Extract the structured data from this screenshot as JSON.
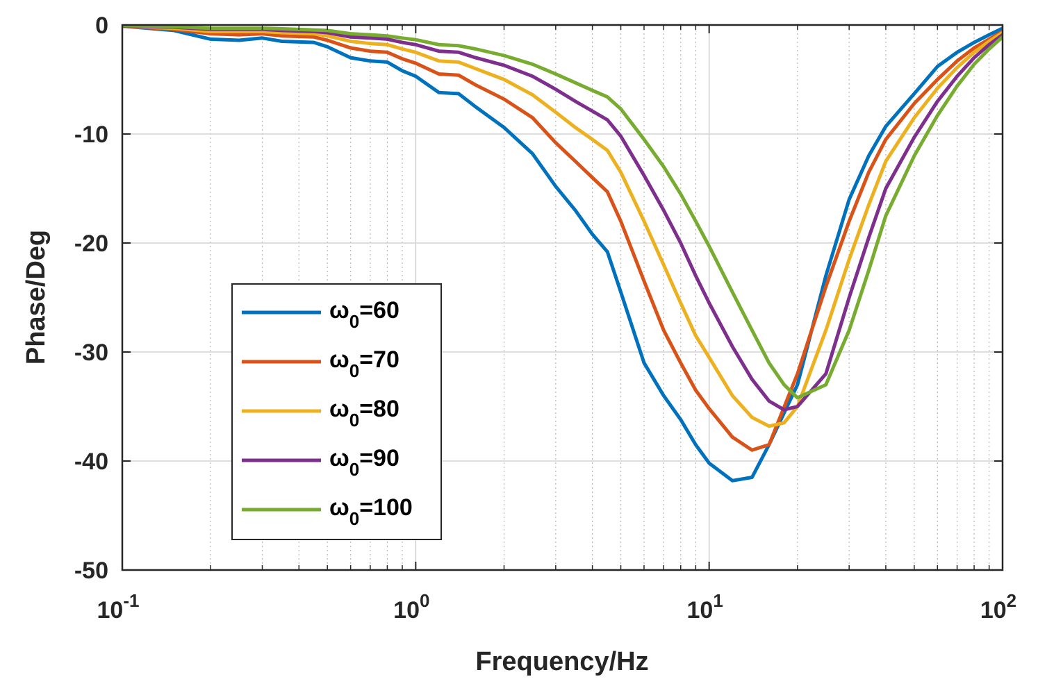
{
  "chart_data": {
    "type": "line",
    "title": "",
    "xlabel": "Frequency/Hz",
    "ylabel": "Phase/Deg",
    "xscale": "log",
    "xlim": [
      0.1,
      100
    ],
    "ylim": [
      -50,
      0
    ],
    "yticks": [
      0,
      -10,
      -20,
      -30,
      -40,
      -50
    ],
    "ytick_labels": [
      "0",
      "-10",
      "-20",
      "-30",
      "-40",
      "-50"
    ],
    "xticks": [
      0.1,
      1,
      10,
      100
    ],
    "xtick_labels": [
      {
        "base": "10",
        "exp": "-1"
      },
      {
        "base": "10",
        "exp": "0"
      },
      {
        "base": "10",
        "exp": "1"
      },
      {
        "base": "10",
        "exp": "2"
      }
    ],
    "grid": true,
    "legend_position": "lower-left",
    "series": [
      {
        "name": "ω0=60",
        "label_main": "ω",
        "label_sub": "0",
        "label_value": "=60",
        "color": "#0072BD",
        "x": [
          0.1,
          0.15,
          0.2,
          0.25,
          0.3,
          0.35,
          0.45,
          0.5,
          0.6,
          0.7,
          0.8,
          0.9,
          1,
          1.2,
          1.4,
          1.6,
          2,
          2.5,
          3,
          3.5,
          4,
          4.5,
          5,
          6,
          7,
          8,
          9,
          10,
          12,
          14,
          16,
          20,
          25,
          30,
          35,
          40,
          50,
          60,
          70,
          80,
          90,
          100
        ],
        "y": [
          -0.1,
          -0.5,
          -1.3,
          -1.4,
          -1.2,
          -1.5,
          -1.6,
          -2.0,
          -3.0,
          -3.3,
          -3.4,
          -4.2,
          -4.7,
          -6.2,
          -6.3,
          -7.5,
          -9.4,
          -11.8,
          -14.8,
          -17.0,
          -19.2,
          -20.8,
          -24.5,
          -31.0,
          -34.0,
          -36.2,
          -38.5,
          -40.2,
          -41.8,
          -41.5,
          -38.5,
          -33.0,
          -23.0,
          -16.0,
          -12.0,
          -9.3,
          -6.3,
          -3.8,
          -2.5,
          -1.6,
          -0.9,
          -0.3
        ]
      },
      {
        "name": "ω0=70",
        "label_main": "ω",
        "label_sub": "0",
        "label_value": "=70",
        "color": "#D95319",
        "x": [
          0.1,
          0.15,
          0.2,
          0.25,
          0.3,
          0.35,
          0.45,
          0.5,
          0.6,
          0.7,
          0.8,
          0.9,
          1,
          1.2,
          1.4,
          1.6,
          2,
          2.5,
          3,
          3.5,
          4,
          4.5,
          5,
          6,
          7,
          8,
          9,
          10,
          12,
          14,
          16,
          20,
          25,
          30,
          35,
          40,
          50,
          60,
          70,
          80,
          90,
          100
        ],
        "y": [
          -0.1,
          -0.4,
          -0.8,
          -0.9,
          -0.8,
          -1.0,
          -1.1,
          -1.4,
          -2.1,
          -2.4,
          -2.5,
          -3.1,
          -3.5,
          -4.5,
          -4.6,
          -5.5,
          -6.8,
          -8.5,
          -10.8,
          -12.5,
          -14.0,
          -15.3,
          -18.0,
          -23.5,
          -28.0,
          -31.0,
          -33.5,
          -35.2,
          -37.8,
          -39.0,
          -38.5,
          -32.0,
          -24.0,
          -18.0,
          -13.5,
          -10.5,
          -7.2,
          -5.0,
          -3.3,
          -2.1,
          -1.3,
          -0.6
        ]
      },
      {
        "name": "ω0=80",
        "label_main": "ω",
        "label_sub": "0",
        "label_value": "=80",
        "color": "#EDB120",
        "x": [
          0.1,
          0.15,
          0.2,
          0.25,
          0.3,
          0.35,
          0.45,
          0.5,
          0.6,
          0.7,
          0.8,
          0.9,
          1,
          1.2,
          1.4,
          1.6,
          2,
          2.5,
          3,
          3.5,
          4,
          4.5,
          5,
          6,
          7,
          8,
          9,
          10,
          12,
          14,
          16,
          18,
          20,
          25,
          30,
          35,
          40,
          50,
          60,
          70,
          80,
          90,
          100
        ],
        "y": [
          -0.1,
          -0.3,
          -0.6,
          -0.6,
          -0.6,
          -0.7,
          -0.8,
          -1.0,
          -1.5,
          -1.7,
          -1.8,
          -2.2,
          -2.5,
          -3.3,
          -3.4,
          -4.0,
          -5.0,
          -6.4,
          -8.0,
          -9.4,
          -10.5,
          -11.5,
          -13.5,
          -18.0,
          -22.0,
          -25.5,
          -28.5,
          -30.5,
          -34.0,
          -36.0,
          -36.8,
          -36.5,
          -35.0,
          -28.0,
          -21.5,
          -16.5,
          -12.5,
          -8.5,
          -5.8,
          -3.9,
          -2.5,
          -1.5,
          -0.7
        ]
      },
      {
        "name": "ω0=90",
        "label_main": "ω",
        "label_sub": "0",
        "label_value": "=90",
        "color": "#7E2F8E",
        "x": [
          0.1,
          0.15,
          0.2,
          0.25,
          0.3,
          0.35,
          0.45,
          0.5,
          0.6,
          0.7,
          0.8,
          0.9,
          1,
          1.2,
          1.4,
          1.6,
          2,
          2.5,
          3,
          3.5,
          4,
          4.5,
          5,
          6,
          7,
          8,
          9,
          10,
          12,
          14,
          16,
          18,
          20,
          25,
          30,
          35,
          40,
          50,
          60,
          70,
          80,
          90,
          100
        ],
        "y": [
          -0.1,
          -0.2,
          -0.4,
          -0.4,
          -0.4,
          -0.5,
          -0.6,
          -0.7,
          -1.1,
          -1.2,
          -1.3,
          -1.6,
          -1.8,
          -2.4,
          -2.5,
          -3.0,
          -3.7,
          -4.7,
          -5.9,
          -7.0,
          -7.9,
          -8.7,
          -10.2,
          -13.8,
          -17.0,
          -20.0,
          -23.0,
          -25.5,
          -29.5,
          -32.5,
          -34.5,
          -35.3,
          -35.0,
          -32.0,
          -25.0,
          -19.5,
          -15.0,
          -10.3,
          -7.0,
          -4.7,
          -3.0,
          -1.8,
          -0.9
        ]
      },
      {
        "name": "ω0=100",
        "label_main": "ω",
        "label_sub": "0",
        "label_value": "=100",
        "color": "#77AC30",
        "x": [
          0.1,
          0.15,
          0.2,
          0.25,
          0.3,
          0.35,
          0.45,
          0.5,
          0.6,
          0.7,
          0.8,
          0.9,
          1,
          1.2,
          1.4,
          1.6,
          2,
          2.5,
          3,
          3.5,
          4,
          4.5,
          5,
          6,
          7,
          8,
          9,
          10,
          12,
          14,
          16,
          18,
          20,
          25,
          30,
          35,
          40,
          50,
          60,
          70,
          80,
          90,
          100
        ],
        "y": [
          -0.05,
          -0.15,
          -0.3,
          -0.3,
          -0.3,
          -0.35,
          -0.45,
          -0.5,
          -0.8,
          -0.9,
          -1.0,
          -1.2,
          -1.35,
          -1.8,
          -1.9,
          -2.2,
          -2.8,
          -3.6,
          -4.5,
          -5.3,
          -6.0,
          -6.6,
          -7.7,
          -10.5,
          -13.0,
          -15.5,
          -18.0,
          -20.3,
          -24.5,
          -28.0,
          -31.0,
          -33.0,
          -34.2,
          -33.0,
          -28.0,
          -22.5,
          -17.5,
          -12.0,
          -8.3,
          -5.6,
          -3.6,
          -2.2,
          -1.1
        ]
      }
    ]
  }
}
